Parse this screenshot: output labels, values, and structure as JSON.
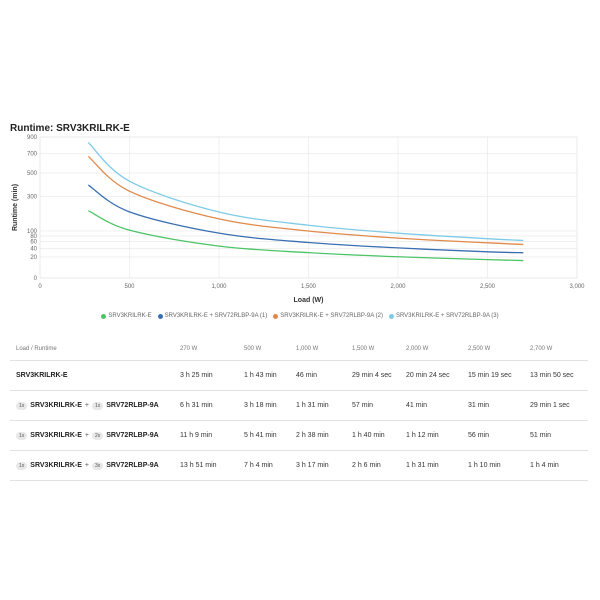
{
  "chart_title": "Runtime: SRV3KRILRK-E",
  "chart_data": {
    "type": "line",
    "xlabel": "Load (W)",
    "ylabel": "Runtime (min)",
    "xlim": [
      0,
      3000
    ],
    "ylim": [
      0,
      900
    ],
    "y_scale": "sqrt",
    "x_ticks": [
      0,
      500,
      1000,
      1500,
      2000,
      2500,
      3000
    ],
    "x_tick_labels": [
      "0",
      "500",
      "1,000",
      "1,500",
      "2,000",
      "2,500",
      "3,000"
    ],
    "y_ticks": [
      0,
      20,
      40,
      60,
      80,
      100,
      300,
      500,
      700,
      900
    ],
    "y_tick_labels": [
      "0",
      "20",
      "40",
      "60",
      "80",
      "100",
      "300",
      "500",
      "700",
      "900"
    ],
    "grid": true,
    "legend_position": "bottom",
    "x": [
      270,
      500,
      1000,
      1500,
      2000,
      2500,
      2700
    ],
    "series": [
      {
        "name": "SRV3KRILRK-E",
        "color": "#4cc466",
        "values": [
          205,
          103.5,
          46,
          29.1,
          20.4,
          15.3,
          13.8
        ]
      },
      {
        "name": "SRV3KRILRK-E + SRV72RLBP-9A (1)",
        "color": "#3a6fb0",
        "values": [
          391,
          198,
          91,
          57,
          41,
          31,
          29
        ]
      },
      {
        "name": "SRV3KRILRK-E + SRV72RLBP-9A (2)",
        "color": "#e0894a",
        "values": [
          669,
          341,
          158,
          100,
          72,
          56,
          51
        ]
      },
      {
        "name": "SRV3KRILRK-E + SRV72RLBP-9A (3)",
        "color": "#7fcbe6",
        "values": [
          831,
          424,
          197,
          126,
          91,
          70,
          64
        ]
      }
    ]
  },
  "table": {
    "header_label": "Load / Runtime",
    "loads": [
      "270 W",
      "500 W",
      "1,000 W",
      "1,500 W",
      "2,000 W",
      "2,500 W",
      "2,700 W"
    ],
    "rows": [
      {
        "unit": "SRV3KRILRK-E",
        "qty1": "",
        "plus": "",
        "qty2": "",
        "battery": "",
        "values": [
          "3 h 25 min",
          "1 h 43 min",
          "46 min",
          "29 min 4 sec",
          "20 min 24 sec",
          "15 min 19 sec",
          "13 min 50 sec"
        ]
      },
      {
        "unit": "SRV3KRILRK-E",
        "qty1": "1x",
        "plus": "+",
        "qty2": "1x",
        "battery": "SRV72RLBP-9A",
        "values": [
          "6 h 31 min",
          "3 h 18 min",
          "1 h 31 min",
          "57 min",
          "41 min",
          "31 min",
          "29 min 1 sec"
        ]
      },
      {
        "unit": "SRV3KRILRK-E",
        "qty1": "1x",
        "plus": "+",
        "qty2": "2x",
        "battery": "SRV72RLBP-9A",
        "values": [
          "11 h 9 min",
          "5 h 41 min",
          "2 h 38 min",
          "1 h 40 min",
          "1 h 12 min",
          "56 min",
          "51 min"
        ]
      },
      {
        "unit": "SRV3KRILRK-E",
        "qty1": "1x",
        "plus": "+",
        "qty2": "3x",
        "battery": "SRV72RLBP-9A",
        "values": [
          "13 h 51 min",
          "7 h 4 min",
          "3 h 17 min",
          "2 h 6 min",
          "1 h 31 min",
          "1 h 10 min",
          "1 h 4 min"
        ]
      }
    ]
  }
}
